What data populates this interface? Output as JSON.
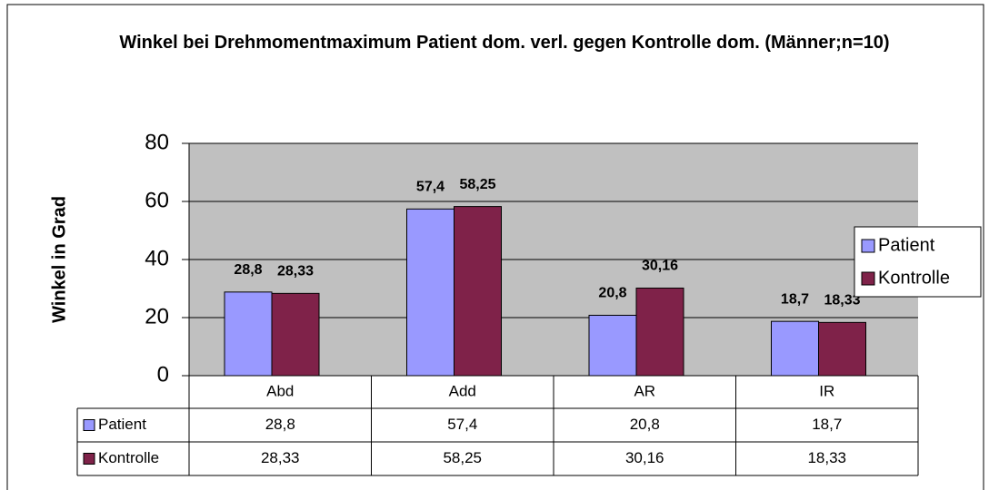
{
  "chart_data": {
    "type": "bar",
    "title": "Winkel bei Drehmomentmaximum Patient dom. verl. gegen Kontrolle dom. (Männer;n=10)",
    "y_axis_label": "Winkel in Grad",
    "categories": [
      "Abd",
      "Add",
      "AR",
      "IR"
    ],
    "series": [
      {
        "name": "Patient",
        "color": "#9999ff",
        "values": [
          28.8,
          57.4,
          20.8,
          18.7
        ],
        "value_labels": [
          "28,8",
          "57,4",
          "20,8",
          "18,7"
        ]
      },
      {
        "name": "Kontrolle",
        "color": "#7f2249",
        "values": [
          28.33,
          58.25,
          30.16,
          18.33
        ],
        "value_labels": [
          "28,33",
          "58,25",
          "30,16",
          "18,33"
        ]
      }
    ],
    "ylim": [
      0,
      80
    ],
    "yticks": [
      0,
      20,
      40,
      60,
      80
    ],
    "grid": true,
    "legend": "right",
    "data_table": true
  }
}
